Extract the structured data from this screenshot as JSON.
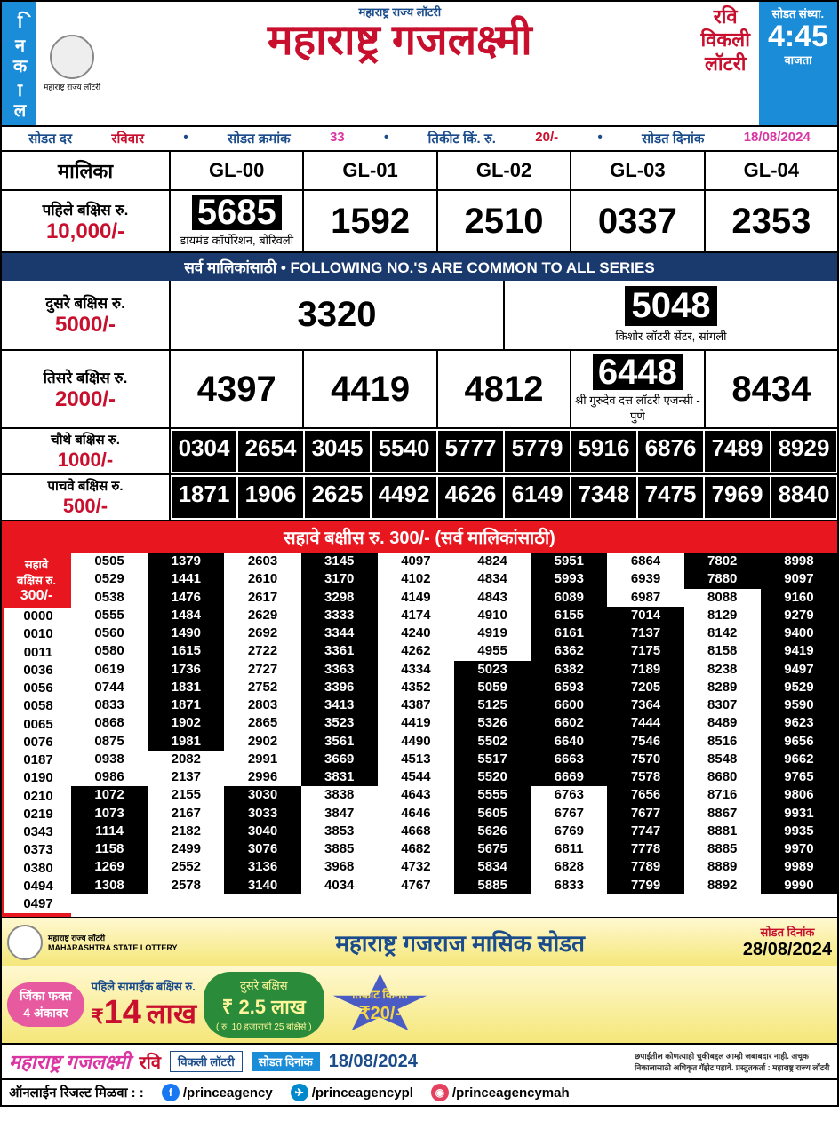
{
  "header": {
    "left_label": "निकाल",
    "logo_caption": "महाराष्ट्र राज्य लॉटरी",
    "subtitle": "महाराष्ट्र राज्य लॉटरी",
    "title": "महाराष्ट्र गजलक्ष्मी",
    "right_day": "रवि",
    "right_type1": "विकली",
    "right_type2": "लॉटरी",
    "time_label1": "सोडत संध्या.",
    "time": "4:45",
    "time_label2": "वाजता"
  },
  "infobar": {
    "l1": "सोडत दर",
    "day": "रविवार",
    "l2": "सोडत क्रमांक",
    "draw_no": "33",
    "l3": "तिकीट किं. रु.",
    "price": "20/-",
    "l4": "सोडत दिनांक",
    "date": "18/08/2024"
  },
  "series_label": "मालिका",
  "series": [
    "GL-00",
    "GL-01",
    "GL-02",
    "GL-03",
    "GL-04"
  ],
  "prize1": {
    "label": "पहिले बक्षिस रु.",
    "amount": "10,000/-",
    "nums": [
      "5685",
      "1592",
      "2510",
      "0337",
      "2353"
    ],
    "highlight_idx": 0,
    "seller": "डायमंड कॉर्पोरेशन, बोरिवली"
  },
  "common_bar": "सर्व मालिकांसाठी  •  FOLLOWING NO.'S ARE COMMON TO ALL SERIES",
  "prize2": {
    "label": "दुसरे बक्षिस रु.",
    "amount": "5000/-",
    "nums": [
      "3320",
      "5048"
    ],
    "highlight_idx": 1,
    "seller": "किशोर लॉटरी सेंटर, सांगली"
  },
  "prize3": {
    "label": "तिसरे बक्षिस रु.",
    "amount": "2000/-",
    "nums": [
      "4397",
      "4419",
      "4812",
      "6448",
      "8434"
    ],
    "highlight_idx": 3,
    "seller": "श्री गुरुदेव दत्त लॉटरी एजन्सी - पुणे"
  },
  "prize4": {
    "label": "चौथे बक्षिस रु.",
    "amount": "1000/-",
    "nums": [
      "0304",
      "2654",
      "3045",
      "5540",
      "5777",
      "5779",
      "5916",
      "6876",
      "7489",
      "8929"
    ]
  },
  "prize5": {
    "label": "पाचवे बक्षिस रु.",
    "amount": "500/-",
    "nums": [
      "1871",
      "1906",
      "2625",
      "4492",
      "4626",
      "6149",
      "7348",
      "7475",
      "7969",
      "8840"
    ]
  },
  "prize6": {
    "label_side1": "सहावे",
    "label_side2": "बक्षिस रु.",
    "amount_side": "300/-",
    "header": "सहावे बक्षीस रु. 300/- (सर्व मालिकांसाठी)",
    "extra_col": [
      "0000",
      "0010",
      "0011",
      "0036",
      "0056",
      "0058",
      "0065",
      "0076",
      "0187",
      "0190",
      "0210",
      "0219",
      "0343",
      "0373",
      "0380",
      "0494",
      "0497"
    ],
    "cols": [
      [
        "0505",
        "0529",
        "0538",
        "0555",
        "0560",
        "0580",
        "0619",
        "0744",
        "0833",
        "0868",
        "0875",
        "0938",
        "0986",
        "1072",
        "1073",
        "1114",
        "1158",
        "1269",
        "1308"
      ],
      [
        "1379",
        "1441",
        "1476",
        "1484",
        "1490",
        "1615",
        "1736",
        "1831",
        "1871",
        "1902",
        "1981",
        "2082",
        "2137",
        "2155",
        "2167",
        "2182",
        "2499",
        "2552",
        "2578"
      ],
      [
        "2603",
        "2610",
        "2617",
        "2629",
        "2692",
        "2722",
        "2727",
        "2752",
        "2803",
        "2865",
        "2902",
        "2991",
        "2996",
        "3030",
        "3033",
        "3040",
        "3076",
        "3136",
        "3140"
      ],
      [
        "3145",
        "3170",
        "3298",
        "3333",
        "3344",
        "3361",
        "3363",
        "3396",
        "3413",
        "3523",
        "3561",
        "3669",
        "3831",
        "3838",
        "3847",
        "3853",
        "3885",
        "3968",
        "4034"
      ],
      [
        "4097",
        "4102",
        "4149",
        "4174",
        "4240",
        "4262",
        "4334",
        "4352",
        "4387",
        "4419",
        "4490",
        "4513",
        "4544",
        "4643",
        "4646",
        "4668",
        "4682",
        "4732",
        "4767"
      ],
      [
        "4824",
        "4834",
        "4843",
        "4910",
        "4919",
        "4955",
        "5023",
        "5059",
        "5125",
        "5326",
        "5502",
        "5517",
        "5520",
        "5555",
        "5605",
        "5626",
        "5675",
        "5834",
        "5885"
      ],
      [
        "5951",
        "5993",
        "6089",
        "6155",
        "6161",
        "6362",
        "6382",
        "6593",
        "6600",
        "6602",
        "6640",
        "6663",
        "6669",
        "6763",
        "6767",
        "6769",
        "6811",
        "6828",
        "6833"
      ],
      [
        "6864",
        "6939",
        "6987",
        "7014",
        "7137",
        "7175",
        "7189",
        "7205",
        "7364",
        "7444",
        "7546",
        "7570",
        "7578",
        "7656",
        "7677",
        "7747",
        "7778",
        "7789",
        "7799"
      ],
      [
        "7802",
        "7880",
        "8088",
        "8129",
        "8142",
        "8158",
        "8238",
        "8289",
        "8307",
        "8489",
        "8516",
        "8548",
        "8680",
        "8716",
        "8867",
        "8881",
        "8885",
        "8889",
        "8892"
      ],
      [
        "8998",
        "9097",
        "9160",
        "9279",
        "9400",
        "9419",
        "9497",
        "9529",
        "9590",
        "9623",
        "9656",
        "9662",
        "9765",
        "9806",
        "9931",
        "9935",
        "9970",
        "9989",
        "9990"
      ]
    ],
    "inv_map": [
      [
        0,
        0,
        0,
        0,
        0,
        0,
        0,
        0,
        0,
        0,
        0,
        0,
        0,
        1,
        1,
        1,
        1,
        1,
        1
      ],
      [
        1,
        1,
        1,
        1,
        1,
        1,
        1,
        1,
        1,
        1,
        1,
        0,
        0,
        0,
        0,
        0,
        0,
        0,
        0
      ],
      [
        0,
        0,
        0,
        0,
        0,
        0,
        0,
        0,
        0,
        0,
        0,
        0,
        0,
        1,
        1,
        1,
        1,
        1,
        1
      ],
      [
        1,
        1,
        1,
        1,
        1,
        1,
        1,
        1,
        1,
        1,
        1,
        1,
        1,
        0,
        0,
        0,
        0,
        0,
        0
      ],
      [
        0,
        0,
        0,
        0,
        0,
        0,
        0,
        0,
        0,
        0,
        0,
        0,
        0,
        0,
        0,
        0,
        0,
        0,
        0
      ],
      [
        0,
        0,
        0,
        0,
        0,
        0,
        1,
        1,
        1,
        1,
        1,
        1,
        1,
        1,
        1,
        1,
        1,
        1,
        1
      ],
      [
        1,
        1,
        1,
        1,
        1,
        1,
        1,
        1,
        1,
        1,
        1,
        1,
        1,
        0,
        0,
        0,
        0,
        0,
        0
      ],
      [
        0,
        0,
        0,
        1,
        1,
        1,
        1,
        1,
        1,
        1,
        1,
        1,
        1,
        1,
        1,
        1,
        1,
        1,
        1
      ],
      [
        1,
        1,
        0,
        0,
        0,
        0,
        0,
        0,
        0,
        0,
        0,
        0,
        0,
        0,
        0,
        0,
        0,
        0,
        0
      ],
      [
        1,
        1,
        1,
        1,
        1,
        1,
        1,
        1,
        1,
        1,
        1,
        1,
        1,
        1,
        1,
        1,
        1,
        1,
        1
      ]
    ]
  },
  "promo": {
    "title": "महाराष्ट्र गजराज मासिक सोडत",
    "date_label": "सोडत दिनांक",
    "date": "28/08/2024",
    "pill_pink1": "जिंका फक्त",
    "pill_pink2": "4 अंकावर",
    "prize14_label": "पहिले सामाईक बक्षिस रु.",
    "prize14_rs": "₹",
    "prize14": "14",
    "prize14_unit": "लाख",
    "green_l1": "दुसरे बक्षिस",
    "green_big": "₹ 2.5 लाख",
    "green_l2": "( रु. 10 हजाराची 25 बक्षिसे )",
    "star_l1": "तिकीट किंमत",
    "star_p": "₹20/-"
  },
  "footer1": {
    "f1": "महाराष्ट्र गजलक्ष्मी",
    "f2": "रवि",
    "f3": "विकली लॉटरी",
    "f4": "सोडत दिनांक",
    "f5": "18/08/2024",
    "f6": "छपाईतील कोणत्याही चुकीबद्दल आम्ही जबाबदार नाही. अचूक निकालासाठी अधिकृत गॅझेट पहावे. प्रस्तुतकर्ता : महाराष्ट्र राज्य लॉटरी"
  },
  "footer2": {
    "label": "ऑनलाईन रिजल्ट मिळवा : :",
    "fb": "/princeagency",
    "tg": "/princeagencypl",
    "ig": "/princeagencymah"
  }
}
